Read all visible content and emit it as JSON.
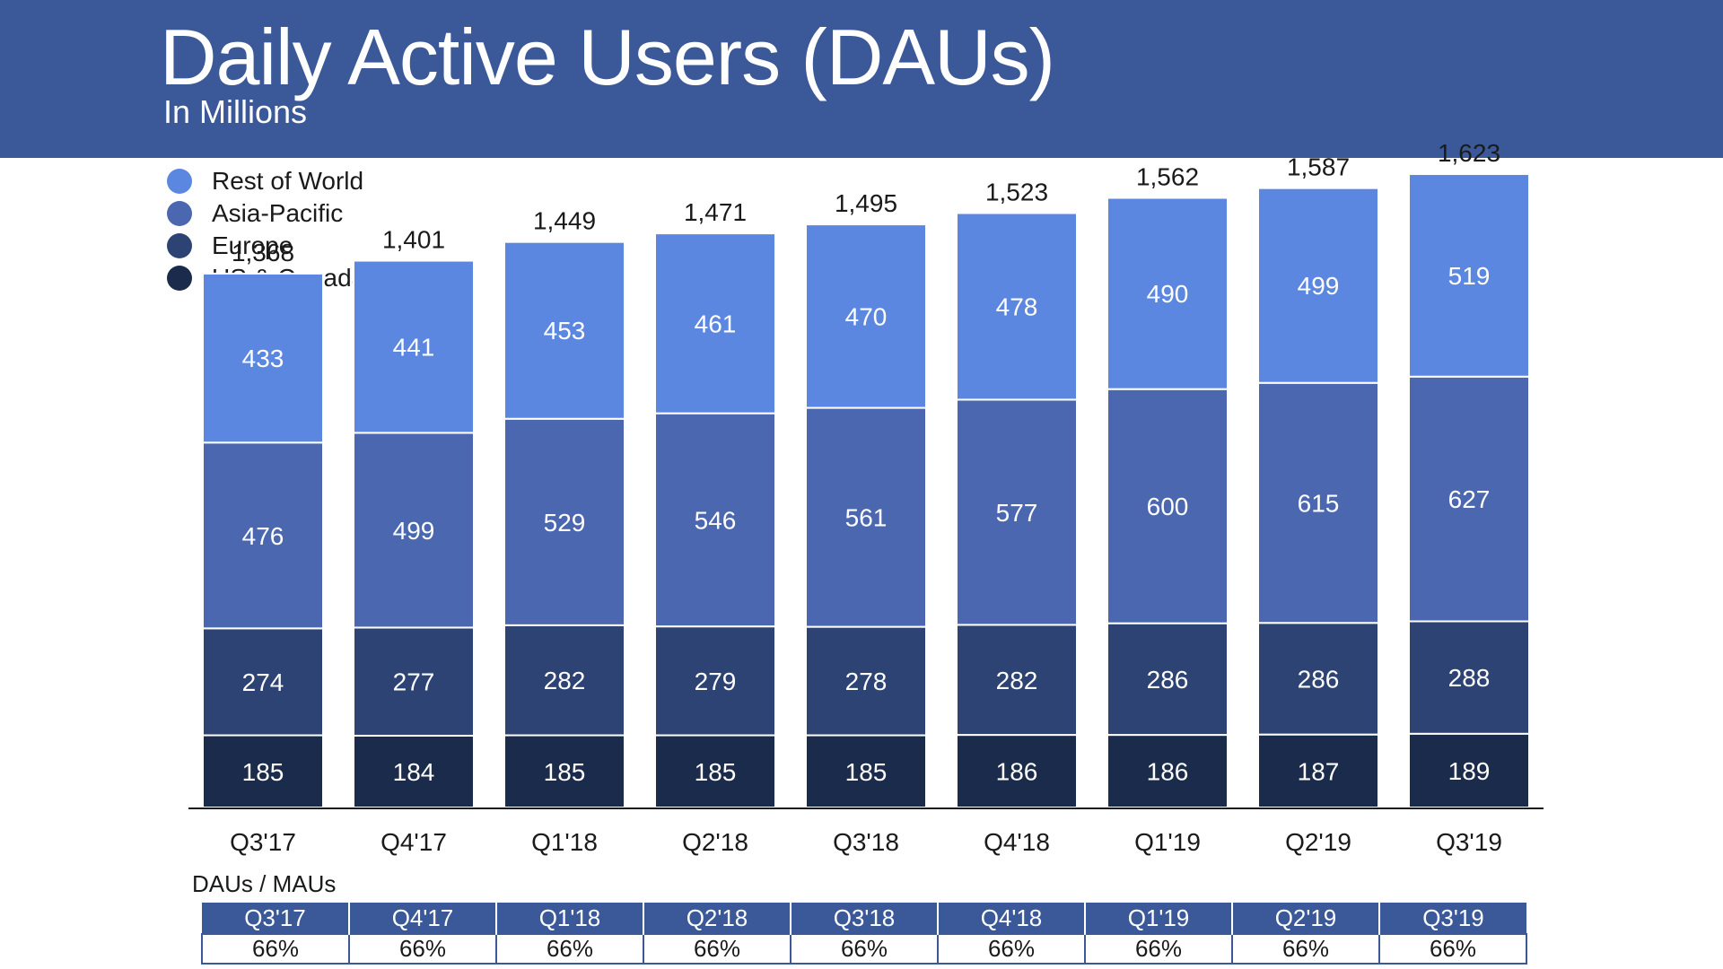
{
  "header": {
    "title": "Daily Active Users (DAUs)",
    "subtitle": "In Millions"
  },
  "colors": {
    "banner": "#3b5998",
    "rest_of_world": "#5b87e0",
    "asia_pacific": "#4a67b0",
    "europe": "#2c4374",
    "us_canada": "#1b2b4b"
  },
  "chart_data": {
    "type": "bar",
    "stacked": true,
    "title": "Daily Active Users (DAUs)",
    "subtitle": "In Millions",
    "legend_position": "top-left",
    "grid": false,
    "categories": [
      "Q3'17",
      "Q4'17",
      "Q1'18",
      "Q2'18",
      "Q3'18",
      "Q4'18",
      "Q1'19",
      "Q2'19",
      "Q3'19"
    ],
    "totals": [
      "1,368",
      "1,401",
      "1,449",
      "1,471",
      "1,495",
      "1,523",
      "1,562",
      "1,587",
      "1,623"
    ],
    "series": [
      {
        "name": "US & Canada",
        "color": "#1b2b4b",
        "values": [
          185,
          184,
          185,
          185,
          185,
          186,
          186,
          187,
          189
        ]
      },
      {
        "name": "Europe",
        "color": "#2c4374",
        "values": [
          274,
          277,
          282,
          279,
          278,
          282,
          286,
          286,
          288
        ]
      },
      {
        "name": "Asia-Pacific",
        "color": "#4a67b0",
        "values": [
          476,
          499,
          529,
          546,
          561,
          577,
          600,
          615,
          627
        ]
      },
      {
        "name": "Rest of World",
        "color": "#5b87e0",
        "values": [
          433,
          441,
          453,
          461,
          470,
          478,
          490,
          499,
          519
        ]
      }
    ],
    "ylim": [
      0,
      1623
    ]
  },
  "ratio_table": {
    "caption": "DAUs / MAUs",
    "quarters": [
      "Q3'17",
      "Q4'17",
      "Q1'18",
      "Q2'18",
      "Q3'18",
      "Q4'18",
      "Q1'19",
      "Q2'19",
      "Q3'19"
    ],
    "values": [
      "66%",
      "66%",
      "66%",
      "66%",
      "66%",
      "66%",
      "66%",
      "66%",
      "66%"
    ]
  }
}
